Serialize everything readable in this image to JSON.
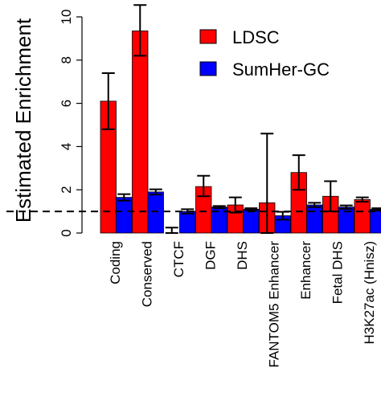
{
  "chart_data": {
    "type": "bar",
    "ylabel": "Estimated Enrichment",
    "xlabel": "",
    "title": "",
    "ylim": [
      0,
      10.5
    ],
    "yticks": [
      0,
      2,
      4,
      6,
      8,
      10
    ],
    "reference_line": 1,
    "legend_position": "top-right",
    "grid": false,
    "categories": [
      "Coding",
      "Conserved",
      "CTCF",
      "DGF",
      "DHS",
      "FANTOM5 Enhancer",
      "Enhancer",
      "Fetal DHS",
      "H3K27ac (Hnisz)"
    ],
    "series": [
      {
        "name": "LDSC",
        "color": "#ff0000",
        "values": [
          6.1,
          9.35,
          0.0,
          2.15,
          1.3,
          1.4,
          2.8,
          1.7,
          1.55
        ],
        "error_low": [
          4.8,
          8.2,
          0.0,
          1.7,
          0.95,
          0.0,
          2.0,
          1.0,
          1.45
        ],
        "error_high": [
          7.4,
          10.55,
          0.25,
          2.65,
          1.65,
          4.6,
          3.6,
          2.4,
          1.65
        ]
      },
      {
        "name": "SumHer-GC",
        "color": "#0000ff",
        "values": [
          1.65,
          1.9,
          1.0,
          1.2,
          1.1,
          0.8,
          1.3,
          1.2,
          1.1
        ],
        "error_low": [
          1.5,
          1.78,
          0.9,
          1.15,
          1.05,
          0.62,
          1.2,
          1.12,
          1.05
        ],
        "error_high": [
          1.8,
          2.02,
          1.1,
          1.25,
          1.15,
          0.98,
          1.4,
          1.28,
          1.15
        ]
      }
    ]
  }
}
